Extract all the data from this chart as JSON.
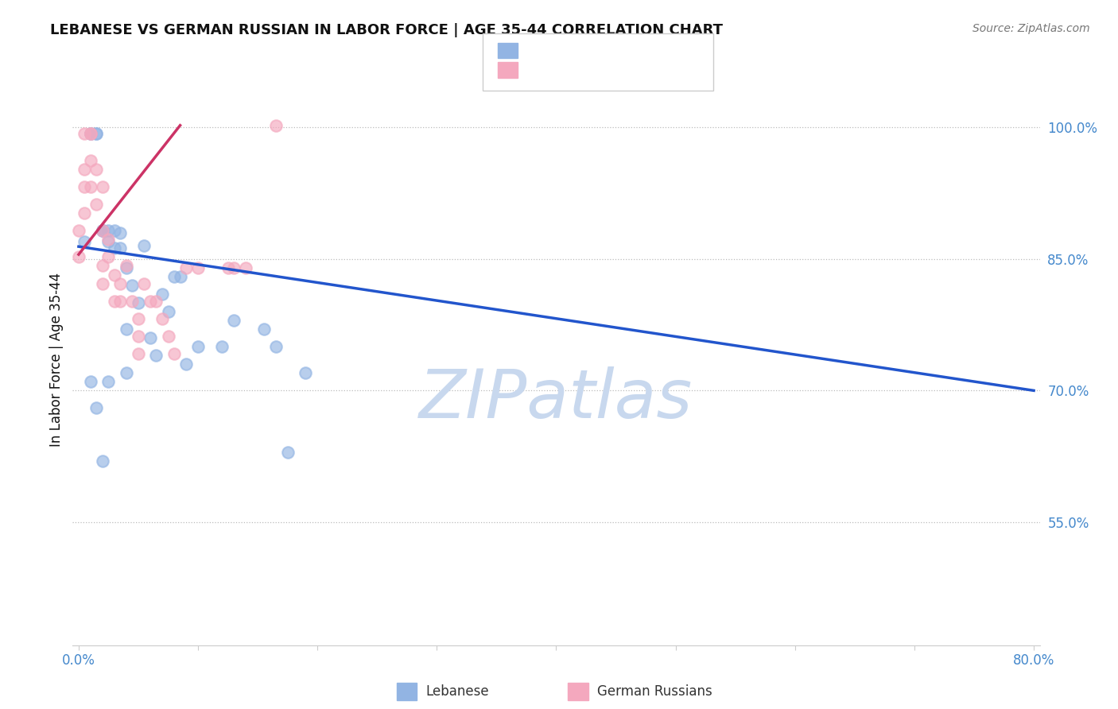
{
  "title": "LEBANESE VS GERMAN RUSSIAN IN LABOR FORCE | AGE 35-44 CORRELATION CHART",
  "source": "Source: ZipAtlas.com",
  "ylabel": "In Labor Force | Age 35-44",
  "ytick_labels": [
    "100.0%",
    "85.0%",
    "70.0%",
    "55.0%"
  ],
  "ytick_values": [
    1.0,
    0.85,
    0.7,
    0.55
  ],
  "xlim": [
    -0.005,
    0.805
  ],
  "ylim": [
    0.41,
    1.06
  ],
  "blue_x": [
    0.005,
    0.01,
    0.01,
    0.015,
    0.015,
    0.02,
    0.02,
    0.02,
    0.025,
    0.025,
    0.03,
    0.03,
    0.035,
    0.035,
    0.04,
    0.04,
    0.045,
    0.05,
    0.055,
    0.06,
    0.065,
    0.07,
    0.075,
    0.08,
    0.085,
    0.09,
    0.1,
    0.12,
    0.13,
    0.155,
    0.165,
    0.175,
    0.19,
    0.01,
    0.015,
    0.02,
    0.025,
    0.04
  ],
  "blue_y": [
    0.87,
    0.993,
    0.993,
    0.993,
    0.993,
    0.882,
    0.882,
    0.882,
    0.882,
    0.87,
    0.882,
    0.862,
    0.88,
    0.862,
    0.84,
    0.77,
    0.82,
    0.8,
    0.865,
    0.76,
    0.74,
    0.81,
    0.79,
    0.83,
    0.83,
    0.73,
    0.75,
    0.75,
    0.78,
    0.77,
    0.75,
    0.63,
    0.72,
    0.71,
    0.68,
    0.62,
    0.71,
    0.72
  ],
  "pink_x": [
    0.0,
    0.0,
    0.005,
    0.005,
    0.005,
    0.005,
    0.01,
    0.01,
    0.01,
    0.01,
    0.015,
    0.015,
    0.02,
    0.02,
    0.02,
    0.02,
    0.025,
    0.025,
    0.03,
    0.03,
    0.035,
    0.035,
    0.04,
    0.045,
    0.05,
    0.05,
    0.05,
    0.055,
    0.06,
    0.065,
    0.07,
    0.075,
    0.08,
    0.09,
    0.1,
    0.125,
    0.13,
    0.14,
    0.165
  ],
  "pink_y": [
    0.882,
    0.852,
    0.993,
    0.952,
    0.932,
    0.902,
    0.993,
    0.993,
    0.962,
    0.932,
    0.952,
    0.912,
    0.932,
    0.882,
    0.842,
    0.822,
    0.872,
    0.852,
    0.832,
    0.802,
    0.822,
    0.802,
    0.842,
    0.802,
    0.782,
    0.762,
    0.742,
    0.822,
    0.802,
    0.802,
    0.782,
    0.762,
    0.742,
    0.84,
    0.84,
    0.84,
    0.84,
    0.84,
    1.002
  ],
  "blue_line_x": [
    0.0,
    0.8
  ],
  "blue_line_y": [
    0.864,
    0.7
  ],
  "pink_line_x": [
    0.0,
    0.085
  ],
  "pink_line_y": [
    0.855,
    1.002
  ],
  "blue_dot_color": "#92B4E3",
  "pink_dot_color": "#F4A8BE",
  "blue_line_color": "#2255CC",
  "pink_line_color": "#CC3366",
  "bg_color": "#FFFFFF",
  "grid_color": "#BBBBBB",
  "title_color": "#111111",
  "axis_num_color": "#4488CC",
  "watermark_color": "#C8D8EE",
  "watermark_text": "ZIPatlas",
  "legend_r_color": "#333333",
  "legend_n_color": "#2255CC"
}
